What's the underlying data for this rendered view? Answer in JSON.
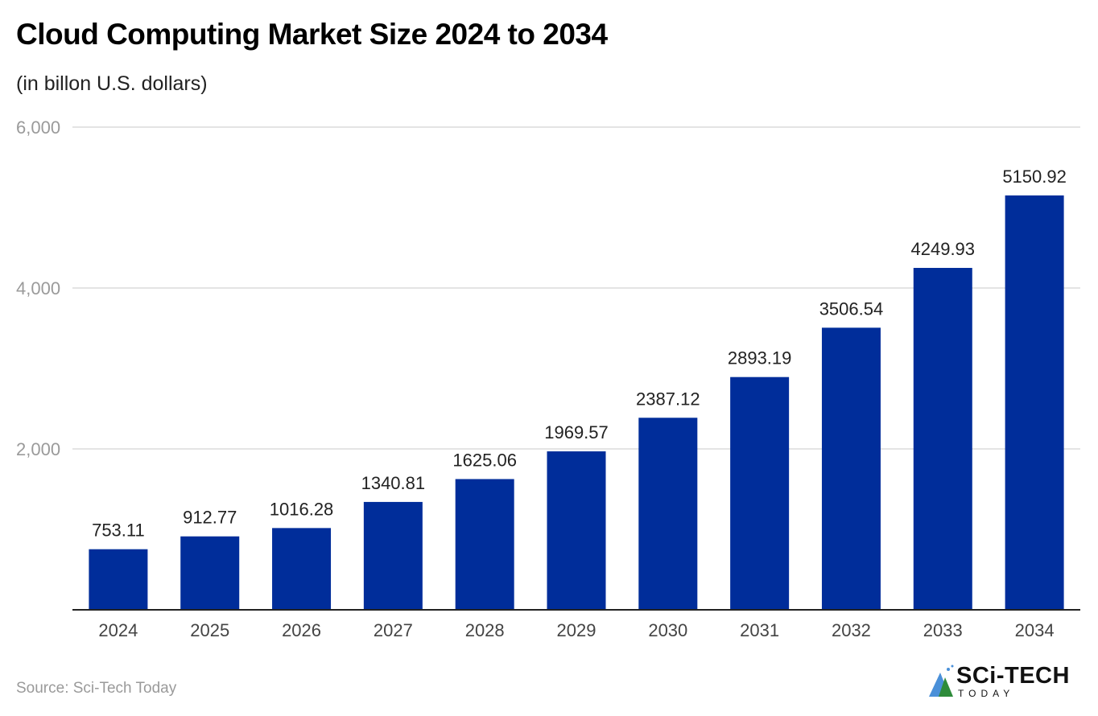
{
  "chart_data": {
    "type": "bar",
    "title": "Cloud Computing Market Size 2024 to 2034",
    "subtitle": "(in billon U.S. dollars)",
    "xlabel": "",
    "ylabel": "",
    "categories": [
      "2024",
      "2025",
      "2026",
      "2027",
      "2028",
      "2029",
      "2030",
      "2031",
      "2032",
      "2033",
      "2034"
    ],
    "values": [
      753.11,
      912.77,
      1016.28,
      1340.81,
      1625.06,
      1969.57,
      2387.12,
      2893.19,
      3506.54,
      4249.93,
      5150.92
    ],
    "value_labels": [
      "753.11",
      "912.77",
      "1016.28",
      "1340.81",
      "1625.06",
      "1969.57",
      "2387.12",
      "2893.19",
      "3506.54",
      "4249.93",
      "5150.92"
    ],
    "ylim": [
      0,
      6000
    ],
    "yticks": [
      2000,
      4000,
      6000
    ],
    "ytick_labels": [
      "2,000",
      "4,000",
      "6,000"
    ],
    "grid": true,
    "legend": "none",
    "bar_color": "#002D9A"
  },
  "footer": {
    "source": "Source: Sci-Tech Today",
    "logo_main": "SCi-TECH",
    "logo_sub": "TODAY"
  }
}
